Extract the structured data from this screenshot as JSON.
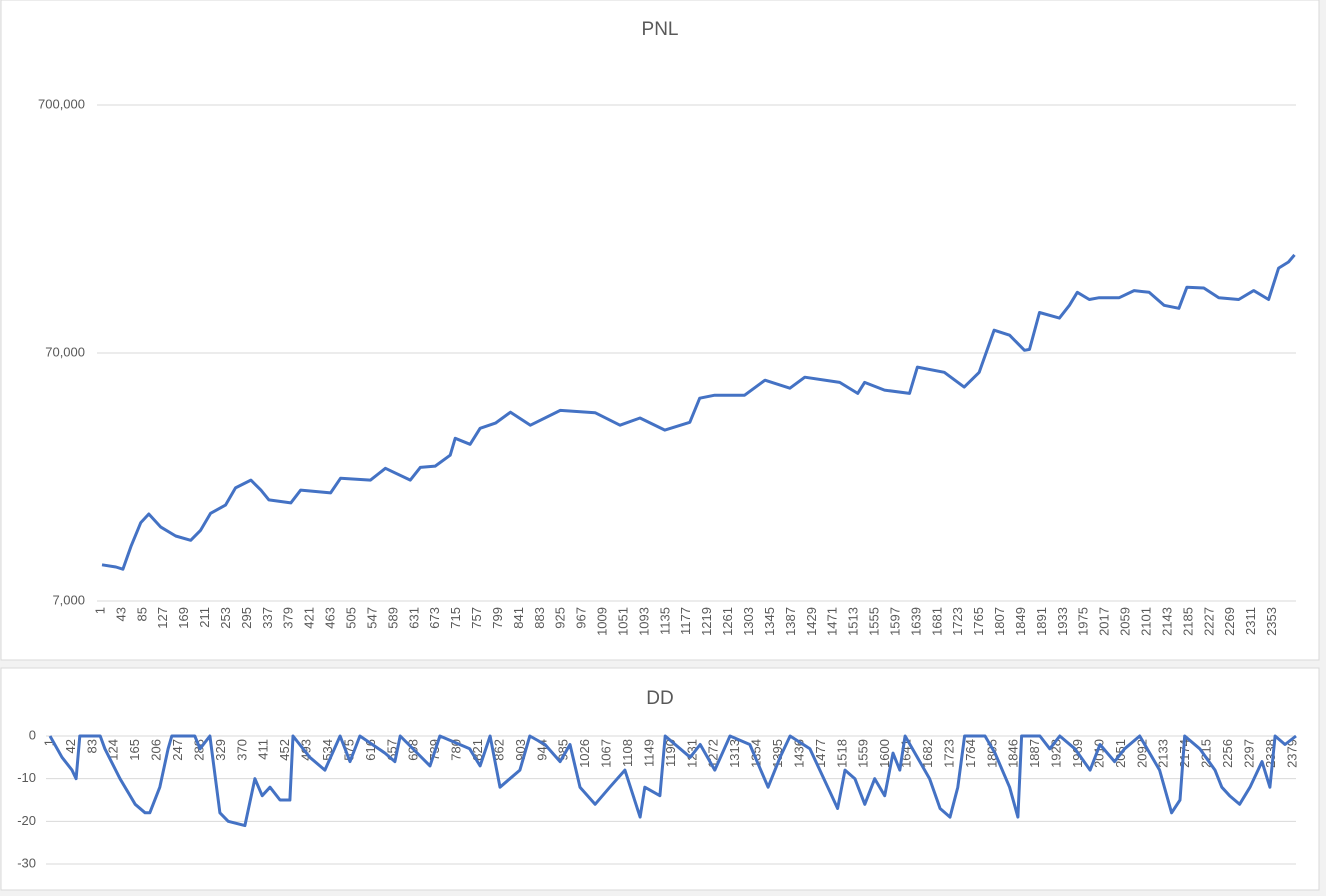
{
  "chart_data": [
    {
      "type": "line",
      "title": "PNL",
      "color": "#4472c4",
      "log": true,
      "grid": true,
      "x": [
        3,
        31,
        45,
        61,
        81,
        97,
        121,
        151,
        181,
        201,
        221,
        251,
        271,
        302,
        322,
        338,
        382,
        402,
        462,
        482,
        542,
        572,
        622,
        642,
        672,
        702,
        712,
        742,
        762,
        793,
        823,
        863,
        923,
        993,
        1043,
        1083,
        1133,
        1183,
        1203,
        1233,
        1293,
        1334,
        1384,
        1414,
        1484,
        1520,
        1534,
        1574,
        1624,
        1640,
        1694,
        1734,
        1764,
        1794,
        1825,
        1855,
        1865,
        1885,
        1925,
        1945,
        1961,
        1985,
        2005,
        2045,
        2075,
        2105,
        2135,
        2165,
        2181,
        2215,
        2245,
        2285,
        2315,
        2345,
        2365,
        2385,
        2397
      ],
      "values": [
        9800,
        9600,
        9400,
        11600,
        14500,
        15700,
        13900,
        12800,
        12300,
        13500,
        15800,
        17050,
        20000,
        21500,
        19600,
        17900,
        17400,
        19600,
        19100,
        21900,
        21500,
        24000,
        21500,
        24200,
        24500,
        27100,
        31700,
        30000,
        34800,
        36500,
        40400,
        35800,
        41100,
        40200,
        35800,
        38300,
        34200,
        36800,
        46000,
        47300,
        47300,
        54400,
        50500,
        55900,
        53300,
        48100,
        53300,
        49600,
        48100,
        61400,
        58500,
        51000,
        58500,
        86500,
        82600,
        71800,
        72400,
        102000,
        96800,
        109000,
        123000,
        115000,
        117000,
        117000,
        125000,
        123000,
        109000,
        106000,
        129000,
        128000,
        117000,
        115000,
        125000,
        115000,
        154000,
        163000,
        174000
      ],
      "xlim": [
        1,
        2400
      ],
      "xticks": [
        1,
        43,
        85,
        127,
        169,
        211,
        253,
        295,
        337,
        379,
        421,
        463,
        505,
        547,
        589,
        631,
        673,
        715,
        757,
        799,
        841,
        883,
        925,
        967,
        1009,
        1051,
        1093,
        1135,
        1177,
        1219,
        1261,
        1303,
        1345,
        1387,
        1429,
        1471,
        1513,
        1555,
        1597,
        1639,
        1681,
        1723,
        1765,
        1807,
        1849,
        1891,
        1933,
        1975,
        2017,
        2059,
        2101,
        2143,
        2185,
        2227,
        2269,
        2311,
        2353
      ],
      "ylim": [
        7000,
        700000
      ],
      "yticks": [
        {
          "value": 7000,
          "label": "7,000"
        },
        {
          "value": 70000,
          "label": "70,000"
        },
        {
          "value": 700000,
          "label": "700,000"
        }
      ]
    },
    {
      "type": "line",
      "title": "DD",
      "color": "#4472c4",
      "log": false,
      "grid": true,
      "x": [
        1,
        24,
        43,
        51,
        58,
        97,
        106,
        135,
        164,
        183,
        192,
        211,
        227,
        234,
        278,
        288,
        307,
        326,
        342,
        374,
        393,
        407,
        422,
        441,
        460,
        466,
        498,
        527,
        556,
        575,
        594,
        642,
        661,
        671,
        728,
        747,
        804,
        824,
        843,
        862,
        881,
        900,
        919,
        948,
        977,
        996,
        1015,
        1044,
        1072,
        1101,
        1130,
        1139,
        1168,
        1178,
        1226,
        1245,
        1273,
        1302,
        1340,
        1375,
        1398,
        1417,
        1455,
        1493,
        1508,
        1522,
        1541,
        1560,
        1579,
        1598,
        1614,
        1627,
        1637,
        1684,
        1704,
        1723,
        1738,
        1751,
        1790,
        1809,
        1837,
        1853,
        1860,
        1895,
        1914,
        1933,
        1962,
        1991,
        2010,
        2038,
        2057,
        2086,
        2124,
        2147,
        2163,
        2172,
        2201,
        2230,
        2243,
        2258,
        2277,
        2297,
        2320,
        2335,
        2345,
        2364,
        2385
      ],
      "values": [
        0,
        -5,
        -8,
        -10,
        0,
        0,
        -3,
        -10,
        -16,
        -18,
        -18,
        -12,
        -3,
        0,
        0,
        -3,
        0,
        -18,
        -20,
        -21,
        -10,
        -14,
        -12,
        -15,
        -15,
        0,
        -5,
        -8,
        0,
        -6,
        0,
        -4,
        -6,
        0,
        -7,
        0,
        -3,
        -7,
        0,
        -12,
        -10,
        -8,
        0,
        -2,
        -6,
        -2,
        -12,
        -16,
        -12,
        -8,
        -19,
        -12,
        -14,
        0,
        -5,
        -2,
        -8,
        0,
        -2,
        -12,
        -5,
        0,
        -3,
        -13,
        -17,
        -8,
        -10,
        -16,
        -10,
        -14,
        -4,
        -8,
        0,
        -10,
        -17,
        -19,
        -12,
        0,
        0,
        -4,
        -12,
        -19,
        0,
        0,
        -3,
        0,
        -3,
        -8,
        -2,
        -6,
        -3,
        0,
        -8,
        -18,
        -15,
        0,
        -3,
        -8,
        -12,
        -14,
        -16,
        -12,
        -6,
        -12,
        0,
        -2,
        0
      ],
      "xlim": [
        1,
        2385
      ],
      "xticks": [
        1,
        42,
        83,
        124,
        165,
        206,
        247,
        288,
        329,
        370,
        411,
        452,
        493,
        534,
        575,
        616,
        657,
        698,
        739,
        780,
        821,
        862,
        903,
        944,
        985,
        1026,
        1067,
        1108,
        1149,
        1190,
        1231,
        1272,
        1313,
        1354,
        1395,
        1436,
        1477,
        1518,
        1559,
        1600,
        1641,
        1682,
        1723,
        1764,
        1805,
        1846,
        1887,
        1928,
        1969,
        2010,
        2051,
        2092,
        2133,
        2174,
        2215,
        2256,
        2297,
        2338,
        2379
      ],
      "ylim": [
        -30,
        0
      ],
      "yticks": [
        0,
        -10,
        -20,
        -30
      ]
    }
  ]
}
